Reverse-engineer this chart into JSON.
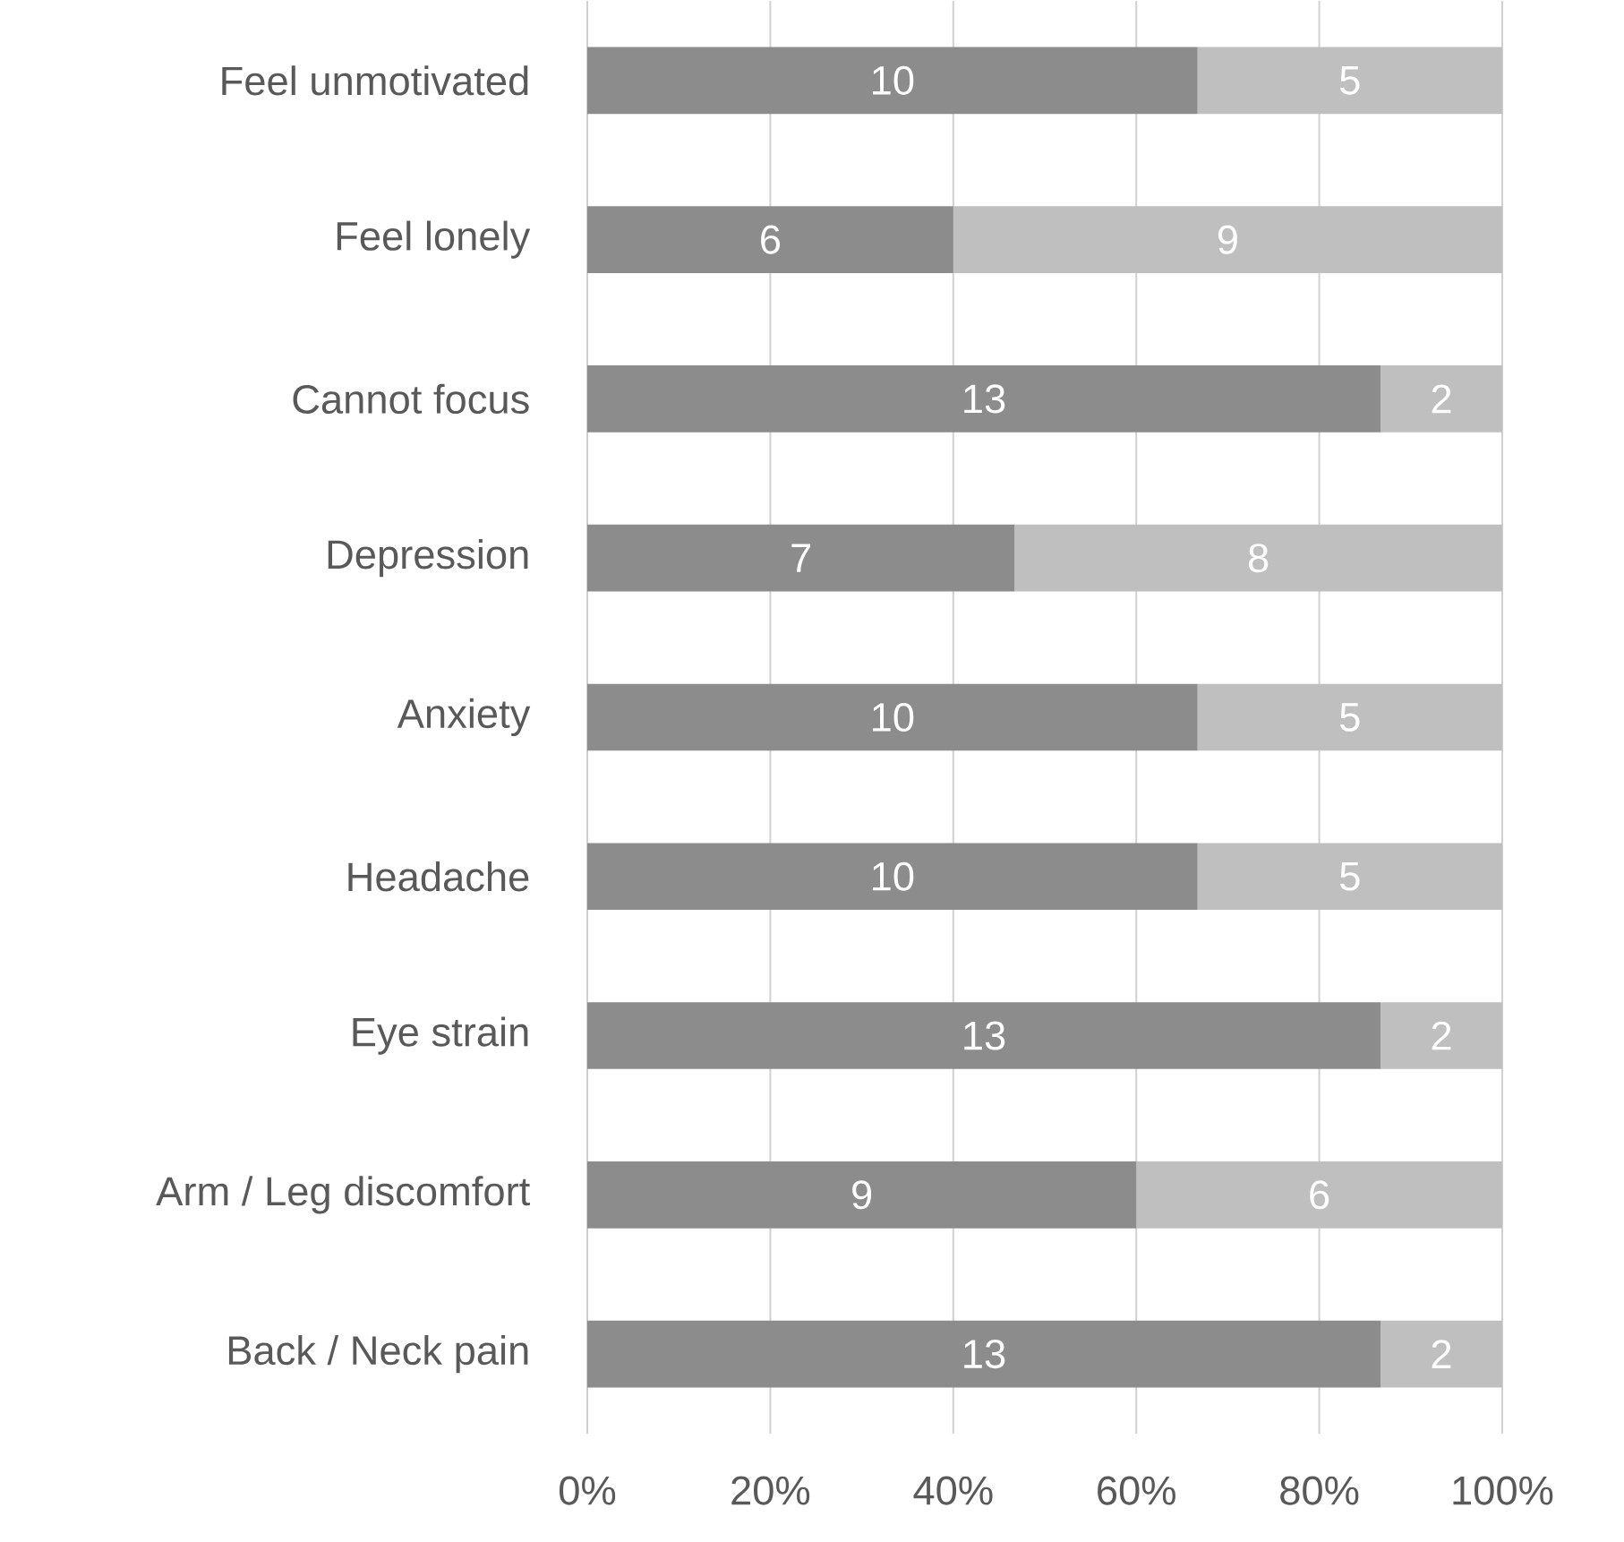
{
  "chart_data": {
    "type": "bar",
    "orientation": "horizontal",
    "stacked": true,
    "categories": [
      "Feel unmotivated",
      "Feel lonely",
      "Cannot focus",
      "Depression",
      "Anxiety",
      "Headache",
      "Eye strain",
      "Arm / Leg discomfort",
      "Back / Neck pain"
    ],
    "series": [
      {
        "color": "#8c8c8c",
        "values": [
          66.7,
          40,
          86.7,
          46.7,
          66.7,
          66.7,
          86.7,
          60,
          86.7
        ]
      },
      {
        "color": "#bfbfbf",
        "values": [
          33.3,
          60,
          13.3,
          53.3,
          33.3,
          33.3,
          13.3,
          40,
          13.3
        ]
      }
    ],
    "xlim": [
      0,
      100
    ],
    "xticks": [
      {
        "value": 0,
        "label": "0%"
      },
      {
        "value": 20,
        "label": "20%"
      },
      {
        "value": 40,
        "label": "40%"
      },
      {
        "value": 60,
        "label": "60%"
      },
      {
        "value": 80,
        "label": "80%"
      },
      {
        "value": 100,
        "label": "100%"
      }
    ],
    "grid": "x",
    "annotations": [
      "10",
      "5",
      "6",
      "9",
      "13",
      "2",
      "7",
      "8",
      "10",
      "5",
      "10",
      "5",
      "13",
      "2",
      "9",
      "6",
      "13",
      "2"
    ]
  }
}
